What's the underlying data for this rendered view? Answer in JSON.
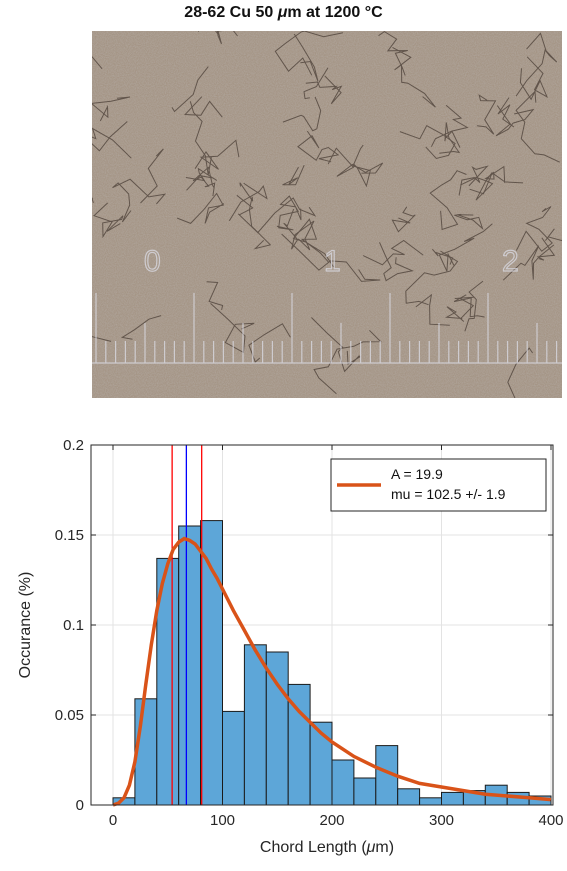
{
  "figure": {
    "title_main": "28-62 Cu 50 ",
    "title_mu": "μ",
    "title_rest": "m at 1200 °C"
  },
  "micrograph": {
    "scale_marks": [
      "0",
      "1",
      "2"
    ]
  },
  "chart_data": {
    "type": "bar",
    "bin_width": 20,
    "bin_edges_start": 0,
    "values": [
      0.004,
      0.059,
      0.137,
      0.155,
      0.158,
      0.052,
      0.089,
      0.085,
      0.067,
      0.046,
      0.025,
      0.015,
      0.033,
      0.009,
      0.004,
      0.007,
      0.008,
      0.011,
      0.007,
      0.005
    ],
    "xlim": [
      0,
      400
    ],
    "ylim": [
      0,
      0.2
    ],
    "xticks": [
      "0",
      "100",
      "200",
      "300",
      "400"
    ],
    "yticks": [
      "0",
      "0.05",
      "0.1",
      "0.15",
      "0.2"
    ],
    "xlabel_pre": "Chord Length (",
    "xlabel_mu": "μ",
    "xlabel_post": "m)",
    "ylabel": "Occurance (%)",
    "grid": true,
    "legend_position": "top-right",
    "legend": {
      "line1": "A = 19.9",
      "line2": "mu = 102.5 +/-  1.9"
    },
    "fit_curve": {
      "x": [
        0,
        5,
        10,
        15,
        20,
        25,
        30,
        35,
        40,
        45,
        50,
        55,
        60,
        65,
        70,
        75,
        80,
        85,
        90,
        95,
        100,
        110,
        120,
        130,
        140,
        150,
        160,
        170,
        180,
        190,
        200,
        220,
        240,
        260,
        280,
        300,
        320,
        340,
        360,
        380,
        400
      ],
      "y": [
        0.0,
        0.001,
        0.004,
        0.011,
        0.024,
        0.044,
        0.067,
        0.089,
        0.108,
        0.123,
        0.134,
        0.142,
        0.146,
        0.148,
        0.147,
        0.145,
        0.141,
        0.137,
        0.131,
        0.126,
        0.12,
        0.108,
        0.097,
        0.086,
        0.076,
        0.067,
        0.059,
        0.052,
        0.046,
        0.04,
        0.035,
        0.027,
        0.021,
        0.016,
        0.012,
        0.01,
        0.008,
        0.006,
        0.005,
        0.004,
        0.003
      ],
      "color": "#d95319"
    },
    "vlines": [
      {
        "x": 54,
        "color": "#ff0000"
      },
      {
        "x": 67,
        "color": "#0000ff"
      },
      {
        "x": 81,
        "color": "#ff0000"
      }
    ],
    "bar_color": "#5da6d8",
    "bar_edge": "#1a1a1a"
  }
}
